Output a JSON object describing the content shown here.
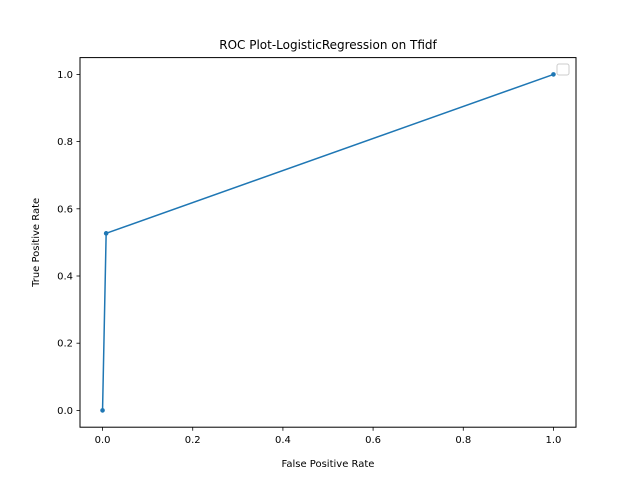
{
  "chart_data": {
    "type": "line",
    "title": "ROC Plot-LogisticRegression on Tfidf",
    "xlabel": "False Positive Rate",
    "ylabel": "True Positive Rate",
    "xlim": [
      -0.05,
      1.05
    ],
    "ylim": [
      -0.05,
      1.05
    ],
    "xticks": [
      0.0,
      0.2,
      0.4,
      0.6,
      0.8,
      1.0
    ],
    "yticks": [
      0.0,
      0.2,
      0.4,
      0.6,
      0.8,
      1.0
    ],
    "xtick_labels": [
      "0.0",
      "0.2",
      "0.4",
      "0.6",
      "0.8",
      "1.0"
    ],
    "ytick_labels": [
      "0.0",
      "0.2",
      "0.4",
      "0.6",
      "0.8",
      "1.0"
    ],
    "grid": false,
    "legend": {
      "placement": "top-right",
      "entries": [
        ""
      ]
    },
    "series": [
      {
        "color": "#1f77b4",
        "marker": "circle",
        "x": [
          0.0,
          0.008,
          1.0
        ],
        "y": [
          0.0,
          0.527,
          1.0
        ]
      }
    ]
  }
}
